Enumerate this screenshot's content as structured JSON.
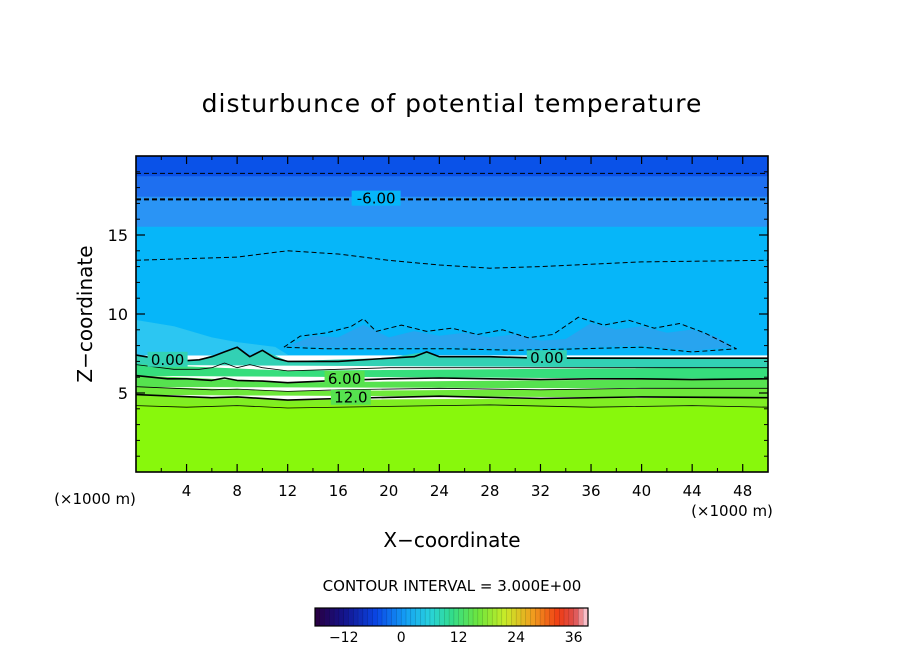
{
  "chart_data": {
    "type": "contour",
    "title": "disturbunce of potential temperature",
    "xlabel": "X−coordinate",
    "ylabel": "Z−coordinate",
    "x_unit": "(×1000 m)",
    "y_unit": "(×1000 m)",
    "xlim": [
      0,
      50
    ],
    "ylim": [
      0,
      20
    ],
    "x_ticks": [
      4,
      8,
      12,
      16,
      20,
      24,
      28,
      32,
      36,
      40,
      44,
      48
    ],
    "y_ticks": [
      5,
      10,
      15
    ],
    "contour_interval_label": "CONTOUR INTERVAL = 3.000E+00",
    "contour_labels": [
      {
        "text": "-6.00",
        "x": 19,
        "z": 17.3
      },
      {
        "text": "0.00",
        "x": 2.5,
        "z": 7.1
      },
      {
        "text": "0.00",
        "x": 32.5,
        "z": 7.2
      },
      {
        "text": "6.00",
        "x": 16.5,
        "z": 5.9
      },
      {
        "text": "12.0",
        "x": 17,
        "z": 4.7
      }
    ],
    "colorbar": {
      "range": [
        -18,
        39
      ],
      "tick_values": [
        -12,
        0,
        12,
        24,
        36
      ],
      "tick_labels": [
        "−12",
        "0",
        "12",
        "24",
        "36"
      ]
    },
    "contours": [
      {
        "level": -9,
        "style": "dashed",
        "width": 1,
        "points": [
          [
            0,
            18.9
          ],
          [
            50,
            18.9
          ]
        ]
      },
      {
        "level": -6,
        "style": "dashed",
        "width": 2,
        "points": [
          [
            0,
            17.25
          ],
          [
            17,
            17.25
          ],
          [
            21,
            17.25
          ],
          [
            50,
            17.25
          ]
        ]
      },
      {
        "level": -3,
        "style": "dashed",
        "width": 1,
        "points": [
          [
            0,
            13.4
          ],
          [
            8,
            13.6
          ],
          [
            12,
            14.0
          ],
          [
            16,
            13.8
          ],
          [
            20,
            13.4
          ],
          [
            24,
            13.1
          ],
          [
            28,
            12.9
          ],
          [
            32,
            13.0
          ],
          [
            40,
            13.3
          ],
          [
            50,
            13.4
          ]
        ]
      },
      {
        "level": -3,
        "style": "dashed",
        "width": 1,
        "points": [
          [
            11.7,
            7.9
          ],
          [
            13,
            8.6
          ],
          [
            15,
            8.8
          ],
          [
            17,
            9.2
          ],
          [
            18,
            9.7
          ],
          [
            19,
            8.9
          ],
          [
            21,
            9.3
          ],
          [
            23,
            8.9
          ],
          [
            25,
            9.1
          ],
          [
            27,
            8.7
          ],
          [
            29,
            9.0
          ],
          [
            31,
            8.5
          ],
          [
            33,
            8.7
          ],
          [
            35,
            9.8
          ],
          [
            37,
            9.3
          ],
          [
            39,
            9.6
          ],
          [
            41,
            9.1
          ],
          [
            43,
            9.4
          ],
          [
            45,
            8.8
          ],
          [
            47.5,
            7.8
          ],
          [
            44,
            7.6
          ],
          [
            40,
            7.9
          ],
          [
            35,
            7.8
          ],
          [
            30,
            7.7
          ],
          [
            25,
            7.8
          ],
          [
            20,
            7.8
          ],
          [
            15,
            7.8
          ],
          [
            11.7,
            7.9
          ]
        ]
      },
      {
        "level": 0,
        "style": "solid",
        "width": 1.6,
        "points": [
          [
            0,
            7.4
          ],
          [
            3,
            7.0
          ],
          [
            5,
            7.1
          ],
          [
            6,
            7.3
          ],
          [
            7,
            7.6
          ],
          [
            8,
            7.9
          ],
          [
            9,
            7.3
          ],
          [
            10,
            7.7
          ],
          [
            11,
            7.2
          ],
          [
            12,
            7.0
          ],
          [
            16,
            7.0
          ],
          [
            20,
            7.2
          ],
          [
            22,
            7.3
          ],
          [
            23,
            7.6
          ],
          [
            24,
            7.3
          ],
          [
            28,
            7.3
          ],
          [
            32,
            7.2
          ],
          [
            36,
            7.2
          ],
          [
            40,
            7.2
          ],
          [
            44,
            7.2
          ],
          [
            50,
            7.2
          ]
        ]
      },
      {
        "level": 3,
        "style": "solid",
        "width": 0.8,
        "points": [
          [
            0,
            6.8
          ],
          [
            3,
            6.5
          ],
          [
            5,
            6.5
          ],
          [
            6,
            6.6
          ],
          [
            7,
            6.9
          ],
          [
            8,
            6.6
          ],
          [
            9,
            6.8
          ],
          [
            10,
            6.6
          ],
          [
            12,
            6.4
          ],
          [
            16,
            6.5
          ],
          [
            20,
            6.6
          ],
          [
            24,
            6.6
          ],
          [
            28,
            6.6
          ],
          [
            32,
            6.6
          ],
          [
            40,
            6.6
          ],
          [
            50,
            6.6
          ]
        ]
      },
      {
        "level": 6,
        "style": "solid",
        "width": 1.6,
        "points": [
          [
            0,
            6.1
          ],
          [
            2.5,
            5.9
          ],
          [
            4,
            5.9
          ],
          [
            6,
            5.8
          ],
          [
            7,
            5.95
          ],
          [
            8,
            5.8
          ],
          [
            10,
            5.75
          ],
          [
            12,
            5.65
          ],
          [
            16,
            5.8
          ],
          [
            20,
            5.9
          ],
          [
            24,
            5.95
          ],
          [
            28,
            5.9
          ],
          [
            32,
            5.85
          ],
          [
            36,
            5.9
          ],
          [
            40,
            5.9
          ],
          [
            44,
            5.85
          ],
          [
            50,
            5.9
          ]
        ]
      },
      {
        "level": 9,
        "style": "solid",
        "width": 0.8,
        "points": [
          [
            0,
            5.4
          ],
          [
            3,
            5.3
          ],
          [
            6,
            5.2
          ],
          [
            8,
            5.25
          ],
          [
            12,
            5.1
          ],
          [
            16,
            5.2
          ],
          [
            24,
            5.3
          ],
          [
            32,
            5.2
          ],
          [
            40,
            5.3
          ],
          [
            50,
            5.3
          ]
        ]
      },
      {
        "level": 12,
        "style": "solid",
        "width": 1.6,
        "points": [
          [
            0,
            4.9
          ],
          [
            3,
            4.8
          ],
          [
            6,
            4.7
          ],
          [
            8,
            4.75
          ],
          [
            12,
            4.55
          ],
          [
            16,
            4.65
          ],
          [
            24,
            4.8
          ],
          [
            32,
            4.65
          ],
          [
            40,
            4.75
          ],
          [
            50,
            4.7
          ]
        ]
      },
      {
        "level": 15,
        "style": "solid",
        "width": 0.8,
        "points": [
          [
            0,
            4.2
          ],
          [
            4,
            4.1
          ],
          [
            8,
            4.2
          ],
          [
            12,
            4.05
          ],
          [
            20,
            4.15
          ],
          [
            28,
            4.25
          ],
          [
            36,
            4.1
          ],
          [
            44,
            4.2
          ],
          [
            50,
            4.1
          ]
        ]
      }
    ],
    "fill_bands": [
      {
        "level": -15,
        "color": "#0a52e8",
        "points": [
          [
            0,
            20
          ],
          [
            50,
            20
          ],
          [
            50,
            18.6
          ],
          [
            0,
            18.6
          ]
        ]
      },
      {
        "level": -12,
        "color": "#1e6ff0",
        "points": [
          [
            0,
            18.7
          ],
          [
            50,
            18.7
          ],
          [
            50,
            17.4
          ],
          [
            0,
            17.4
          ]
        ]
      },
      {
        "level": -9,
        "color": "#2a94f5",
        "points": [
          [
            0,
            17.4
          ],
          [
            50,
            17.4
          ],
          [
            50,
            15.5
          ],
          [
            0,
            15.5
          ]
        ]
      },
      {
        "level": -6,
        "color": "#06b6f9",
        "points": [
          [
            0,
            15.5
          ],
          [
            50,
            15.5
          ],
          [
            50,
            7.4
          ],
          [
            0,
            7.4
          ]
        ]
      },
      {
        "level": -3,
        "color": "#2cc6f2",
        "points": [
          [
            0,
            9.6
          ],
          [
            3,
            9.2
          ],
          [
            6,
            8.5
          ],
          [
            8,
            8.2
          ],
          [
            11,
            7.9
          ],
          [
            12,
            7.4
          ],
          [
            0,
            7.4
          ]
        ]
      },
      {
        "level": 0,
        "color": "#32d1b4",
        "points": [
          [
            0,
            7.4
          ],
          [
            3,
            7.0
          ],
          [
            5,
            7.1
          ],
          [
            7,
            7.6
          ],
          [
            8,
            7.9
          ],
          [
            9,
            7.3
          ],
          [
            10,
            7.7
          ],
          [
            12,
            7.0
          ],
          [
            20,
            7.2
          ],
          [
            23,
            7.6
          ],
          [
            24,
            7.3
          ],
          [
            50,
            7.2
          ],
          [
            50,
            6.6
          ],
          [
            0,
            6.8
          ]
        ]
      },
      {
        "level": 3,
        "color": "#36de7c",
        "points": [
          [
            0,
            6.8
          ],
          [
            12,
            6.4
          ],
          [
            50,
            6.6
          ],
          [
            50,
            5.9
          ],
          [
            0,
            6.1
          ]
        ]
      },
      {
        "level": 6,
        "color": "#56e24f",
        "points": [
          [
            0,
            6.1
          ],
          [
            12,
            5.65
          ],
          [
            50,
            5.9
          ],
          [
            50,
            5.3
          ],
          [
            0,
            5.4
          ]
        ]
      },
      {
        "level": 9,
        "color": "#6ee83a",
        "points": [
          [
            0,
            5.4
          ],
          [
            12,
            5.1
          ],
          [
            50,
            5.3
          ],
          [
            50,
            4.7
          ],
          [
            0,
            4.9
          ]
        ]
      },
      {
        "level": 12,
        "color": "#80ee22",
        "points": [
          [
            0,
            4.9
          ],
          [
            12,
            4.55
          ],
          [
            50,
            4.7
          ],
          [
            50,
            4.1
          ],
          [
            0,
            4.2
          ]
        ]
      },
      {
        "level": 15,
        "color": "#88f80c",
        "points": [
          [
            0,
            4.2
          ],
          [
            50,
            4.1
          ],
          [
            50,
            0
          ],
          [
            0,
            0
          ]
        ]
      },
      {
        "level": -3,
        "color": "#28a4ef",
        "points": [
          [
            12.2,
            8.0
          ],
          [
            14,
            8.6
          ],
          [
            16,
            8.5
          ],
          [
            18,
            9.3
          ],
          [
            20,
            8.5
          ],
          [
            22,
            8.9
          ],
          [
            24,
            8.6
          ],
          [
            26,
            8.8
          ],
          [
            28,
            8.5
          ],
          [
            30,
            8.7
          ],
          [
            32,
            8.3
          ],
          [
            34,
            8.4
          ],
          [
            36,
            9.4
          ],
          [
            38,
            9.0
          ],
          [
            40,
            9.2
          ],
          [
            42,
            8.8
          ],
          [
            44,
            9.0
          ],
          [
            46,
            8.5
          ],
          [
            47.2,
            7.9
          ],
          [
            44,
            7.7
          ],
          [
            40,
            8.0
          ],
          [
            35,
            7.9
          ],
          [
            30,
            7.8
          ],
          [
            25,
            7.9
          ],
          [
            20,
            7.9
          ],
          [
            15,
            7.9
          ]
        ]
      }
    ]
  }
}
